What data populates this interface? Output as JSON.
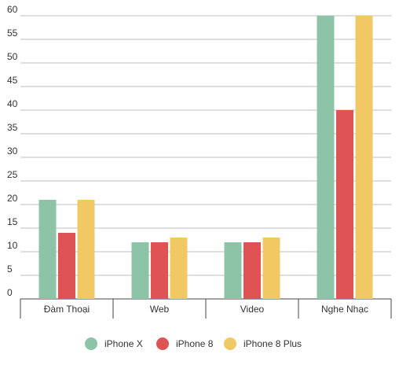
{
  "chart_data": {
    "type": "bar",
    "categories": [
      "Đàm Thoại",
      "Web",
      "Video",
      "Nghe Nhạc"
    ],
    "series": [
      {
        "name": "iPhone X",
        "color": "#8dc4a8",
        "values": [
          21,
          12,
          12,
          60
        ]
      },
      {
        "name": "iPhone 8",
        "color": "#e05355",
        "values": [
          14,
          12,
          12,
          40
        ]
      },
      {
        "name": "iPhone 8 Plus",
        "color": "#f0c864",
        "values": [
          21,
          13,
          13,
          60
        ]
      }
    ],
    "ylim": [
      0,
      60
    ],
    "yticks": [
      0,
      5,
      10,
      15,
      20,
      25,
      30,
      35,
      40,
      45,
      50,
      55,
      60
    ],
    "grid": true,
    "legend": "bottom"
  }
}
